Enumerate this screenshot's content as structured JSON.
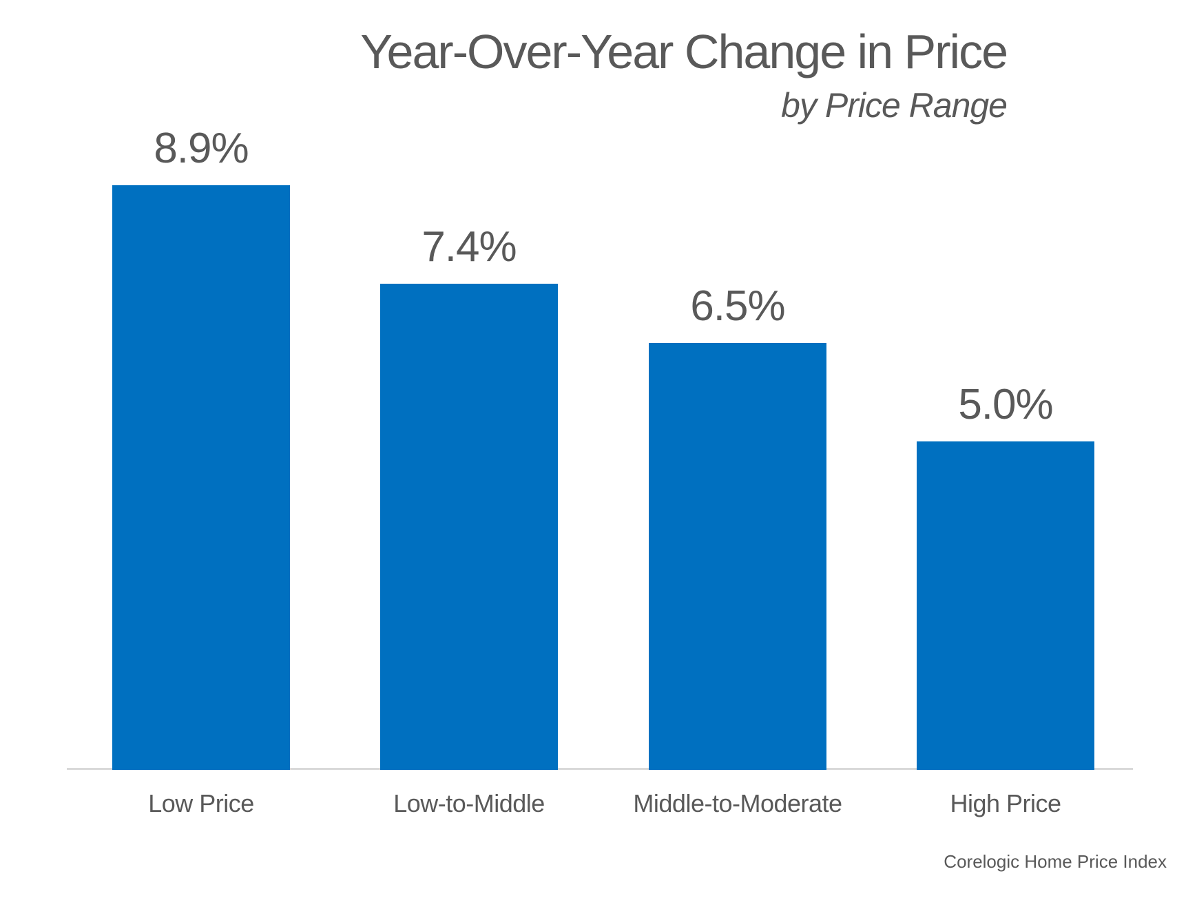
{
  "chart_data": {
    "type": "bar",
    "title": "Year-Over-Year Change in Price",
    "subtitle": "by Price Range",
    "categories": [
      "Low Price",
      "Low-to-Middle",
      "Middle-to-Moderate",
      "High Price"
    ],
    "values": [
      8.9,
      7.4,
      6.5,
      5.0
    ],
    "data_labels": [
      "8.9%",
      "7.4%",
      "6.5%",
      "5.0%"
    ],
    "source": "Corelogic Home Price Index",
    "bar_color": "#0070C0",
    "text_color": "#595959",
    "axis_line_color": "#D9D9D9",
    "ylim": [
      0,
      9.4
    ],
    "grid": false,
    "legend": false,
    "xlabel": "",
    "ylabel": ""
  }
}
